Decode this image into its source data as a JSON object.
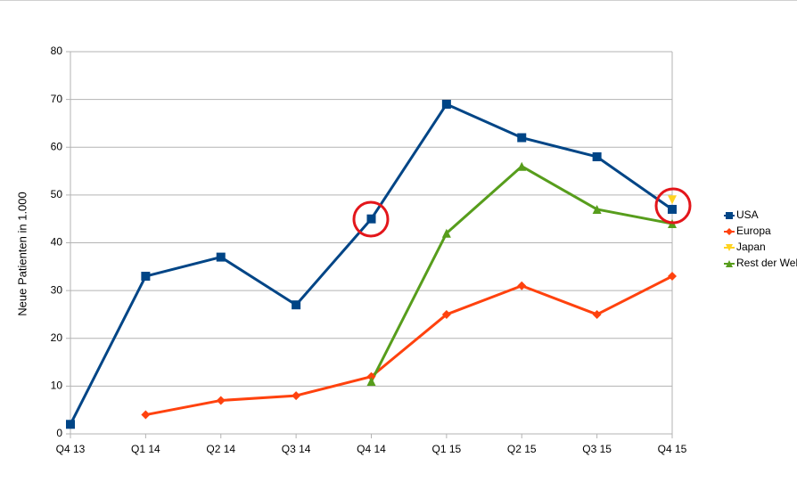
{
  "chart_data": {
    "type": "line",
    "y_label": "Neue Patienten in 1.000",
    "categories": [
      "Q4 13",
      "Q1 14",
      "Q2 14",
      "Q3 14",
      "Q4 14",
      "Q1 15",
      "Q2 15",
      "Q3 15",
      "Q4 15"
    ],
    "series": [
      {
        "name": "USA",
        "color": "#004586",
        "marker": "square",
        "values": [
          2,
          33,
          37,
          27,
          45,
          69,
          62,
          58,
          47
        ]
      },
      {
        "name": "Europa",
        "color": "#ff420e",
        "marker": "diamond",
        "values": [
          null,
          4,
          7,
          8,
          12,
          25,
          31,
          25,
          33
        ]
      },
      {
        "name": "Japan",
        "color": "#ffd320",
        "marker": "triangle-down",
        "values": [
          null,
          null,
          null,
          null,
          null,
          null,
          null,
          null,
          49
        ]
      },
      {
        "name": "Rest der Wel",
        "color": "#579d1c",
        "marker": "triangle",
        "values": [
          null,
          null,
          null,
          null,
          11,
          42,
          56,
          47,
          44
        ]
      }
    ],
    "ylim": [
      0,
      80
    ],
    "yticks": [
      0,
      10,
      20,
      30,
      40,
      50,
      60,
      70,
      80
    ],
    "grid": true,
    "legend": "right"
  }
}
